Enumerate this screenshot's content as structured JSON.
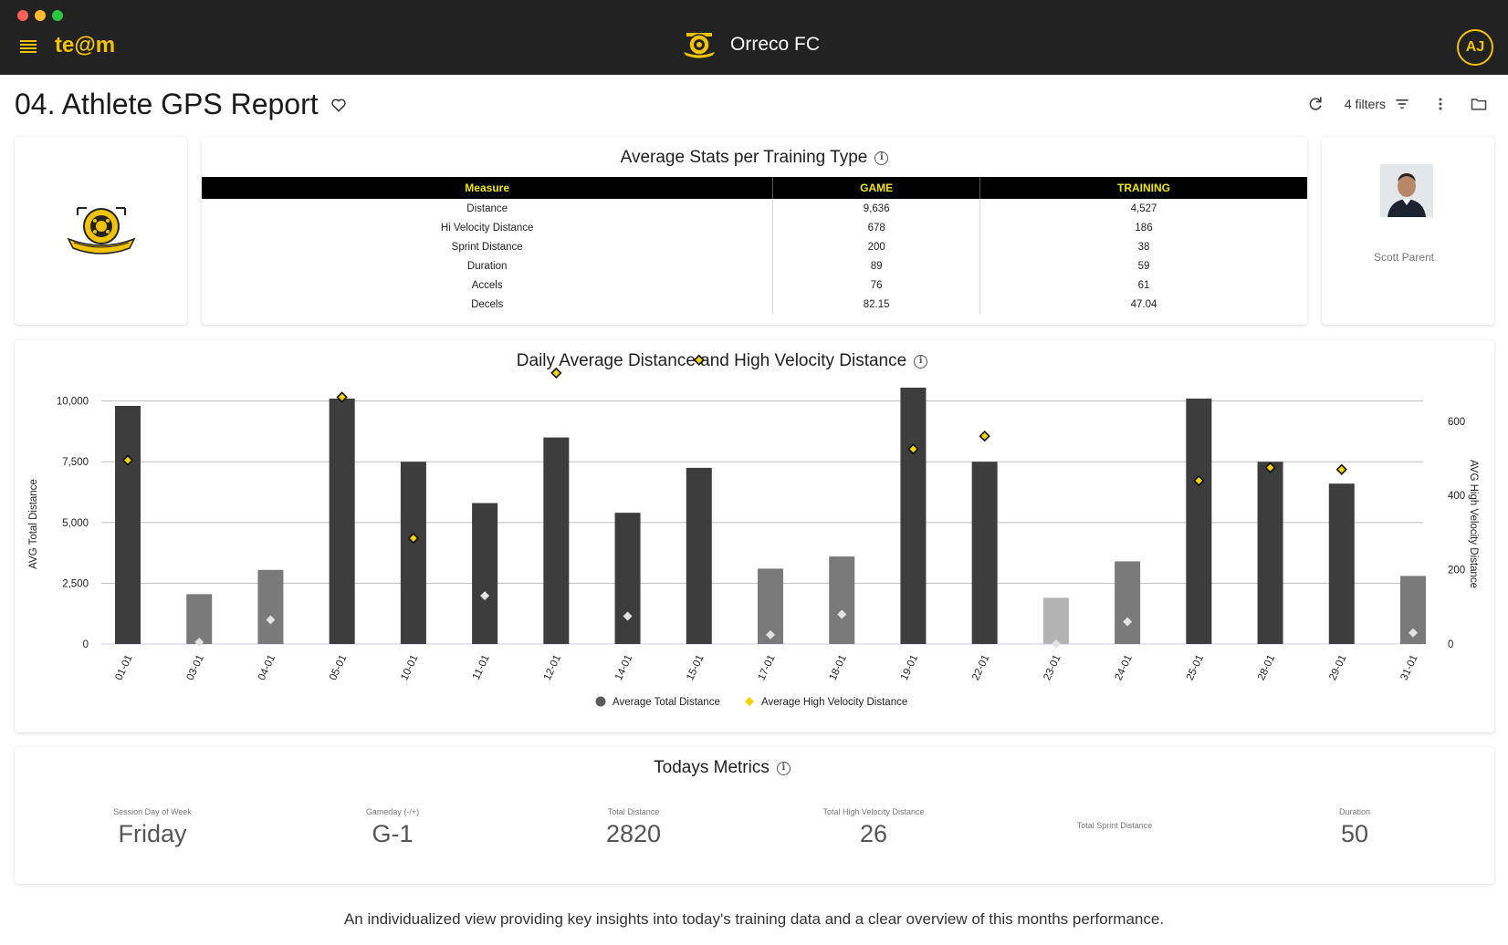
{
  "app": {
    "brand": "te@m",
    "club_name": "Orreco FC",
    "user_initials": "AJ",
    "traffic_colors": [
      "#ff5f57",
      "#febc2e",
      "#28c840"
    ]
  },
  "header": {
    "title": "04. Athlete GPS Report",
    "filters_label": "4 filters"
  },
  "stats": {
    "title": "Average Stats per Training Type",
    "columns": [
      "Measure",
      "GAME",
      "TRAINING"
    ],
    "rows": [
      [
        "Distance",
        "9,636",
        "4,527"
      ],
      [
        "Hi Velocity Distance",
        "678",
        "186"
      ],
      [
        "Sprint Distance",
        "200",
        "38"
      ],
      [
        "Duration",
        "89",
        "59"
      ],
      [
        "Accels",
        "76",
        "61"
      ],
      [
        "Decels",
        "82.15",
        "47.04"
      ]
    ]
  },
  "player": {
    "name": "Scott Parent"
  },
  "chart": {
    "title": "Daily Average Distance and High Velocity Distance",
    "colors": {
      "dark": "#3d3d3d",
      "mid": "#7a7a7a",
      "light": "#b3b3b3",
      "accent": "#f2d600"
    }
  },
  "chart_data": {
    "type": "bar",
    "categories": [
      "01-01",
      "03-01",
      "04-01",
      "05-01",
      "10-01",
      "11-01",
      "12-01",
      "14-01",
      "15-01",
      "17-01",
      "18-01",
      "19-01",
      "22-01",
      "23-01",
      "24-01",
      "25-01",
      "28-01",
      "29-01",
      "31-01"
    ],
    "series": [
      {
        "name": "Average Total Distance",
        "axis": "left",
        "values": [
          9800,
          2050,
          3050,
          10100,
          7500,
          5800,
          8500,
          5400,
          7250,
          3100,
          3600,
          10550,
          7500,
          1900,
          3400,
          10100,
          7500,
          6600,
          2800
        ],
        "shade": [
          "dark",
          "mid",
          "mid",
          "dark",
          "dark",
          "dark",
          "dark",
          "dark",
          "dark",
          "mid",
          "mid",
          "dark",
          "dark",
          "light",
          "mid",
          "dark",
          "dark",
          "dark",
          "mid"
        ]
      },
      {
        "name": "Average High Velocity Distance",
        "axis": "right",
        "values": [
          495,
          5,
          65,
          665,
          285,
          130,
          730,
          75,
          765,
          25,
          80,
          525,
          560,
          0,
          60,
          440,
          475,
          470,
          30
        ],
        "highlight": [
          true,
          false,
          false,
          true,
          true,
          false,
          true,
          false,
          true,
          false,
          false,
          true,
          true,
          false,
          false,
          true,
          true,
          true,
          false
        ]
      }
    ],
    "ylabel": "AVG Total Distance",
    "ylabel_right": "AVG High Velocity Distance",
    "ylim": [
      0,
      11000
    ],
    "ylim_right": [
      0,
      720
    ],
    "yticks": [
      "0",
      "2,500",
      "5,000",
      "7,500",
      "10,000"
    ],
    "yticks_right": [
      "0",
      "200",
      "400",
      "600"
    ],
    "legend_position": "bottom",
    "grid": true
  },
  "metrics": {
    "title": "Todays Metrics",
    "items": [
      {
        "label": "Session Day of Week",
        "value": "Friday"
      },
      {
        "label": "Gameday (-/+)",
        "value": "G-1"
      },
      {
        "label": "Total Distance",
        "value": "2820"
      },
      {
        "label": "Total High Velocity Distance",
        "value": "26"
      },
      {
        "label": "Total Sprint Distance",
        "value": ""
      },
      {
        "label": "Duration",
        "value": "50"
      }
    ]
  },
  "footer": {
    "text": "An individualized view providing key insights into today's training data and a clear overview of this months performance."
  }
}
